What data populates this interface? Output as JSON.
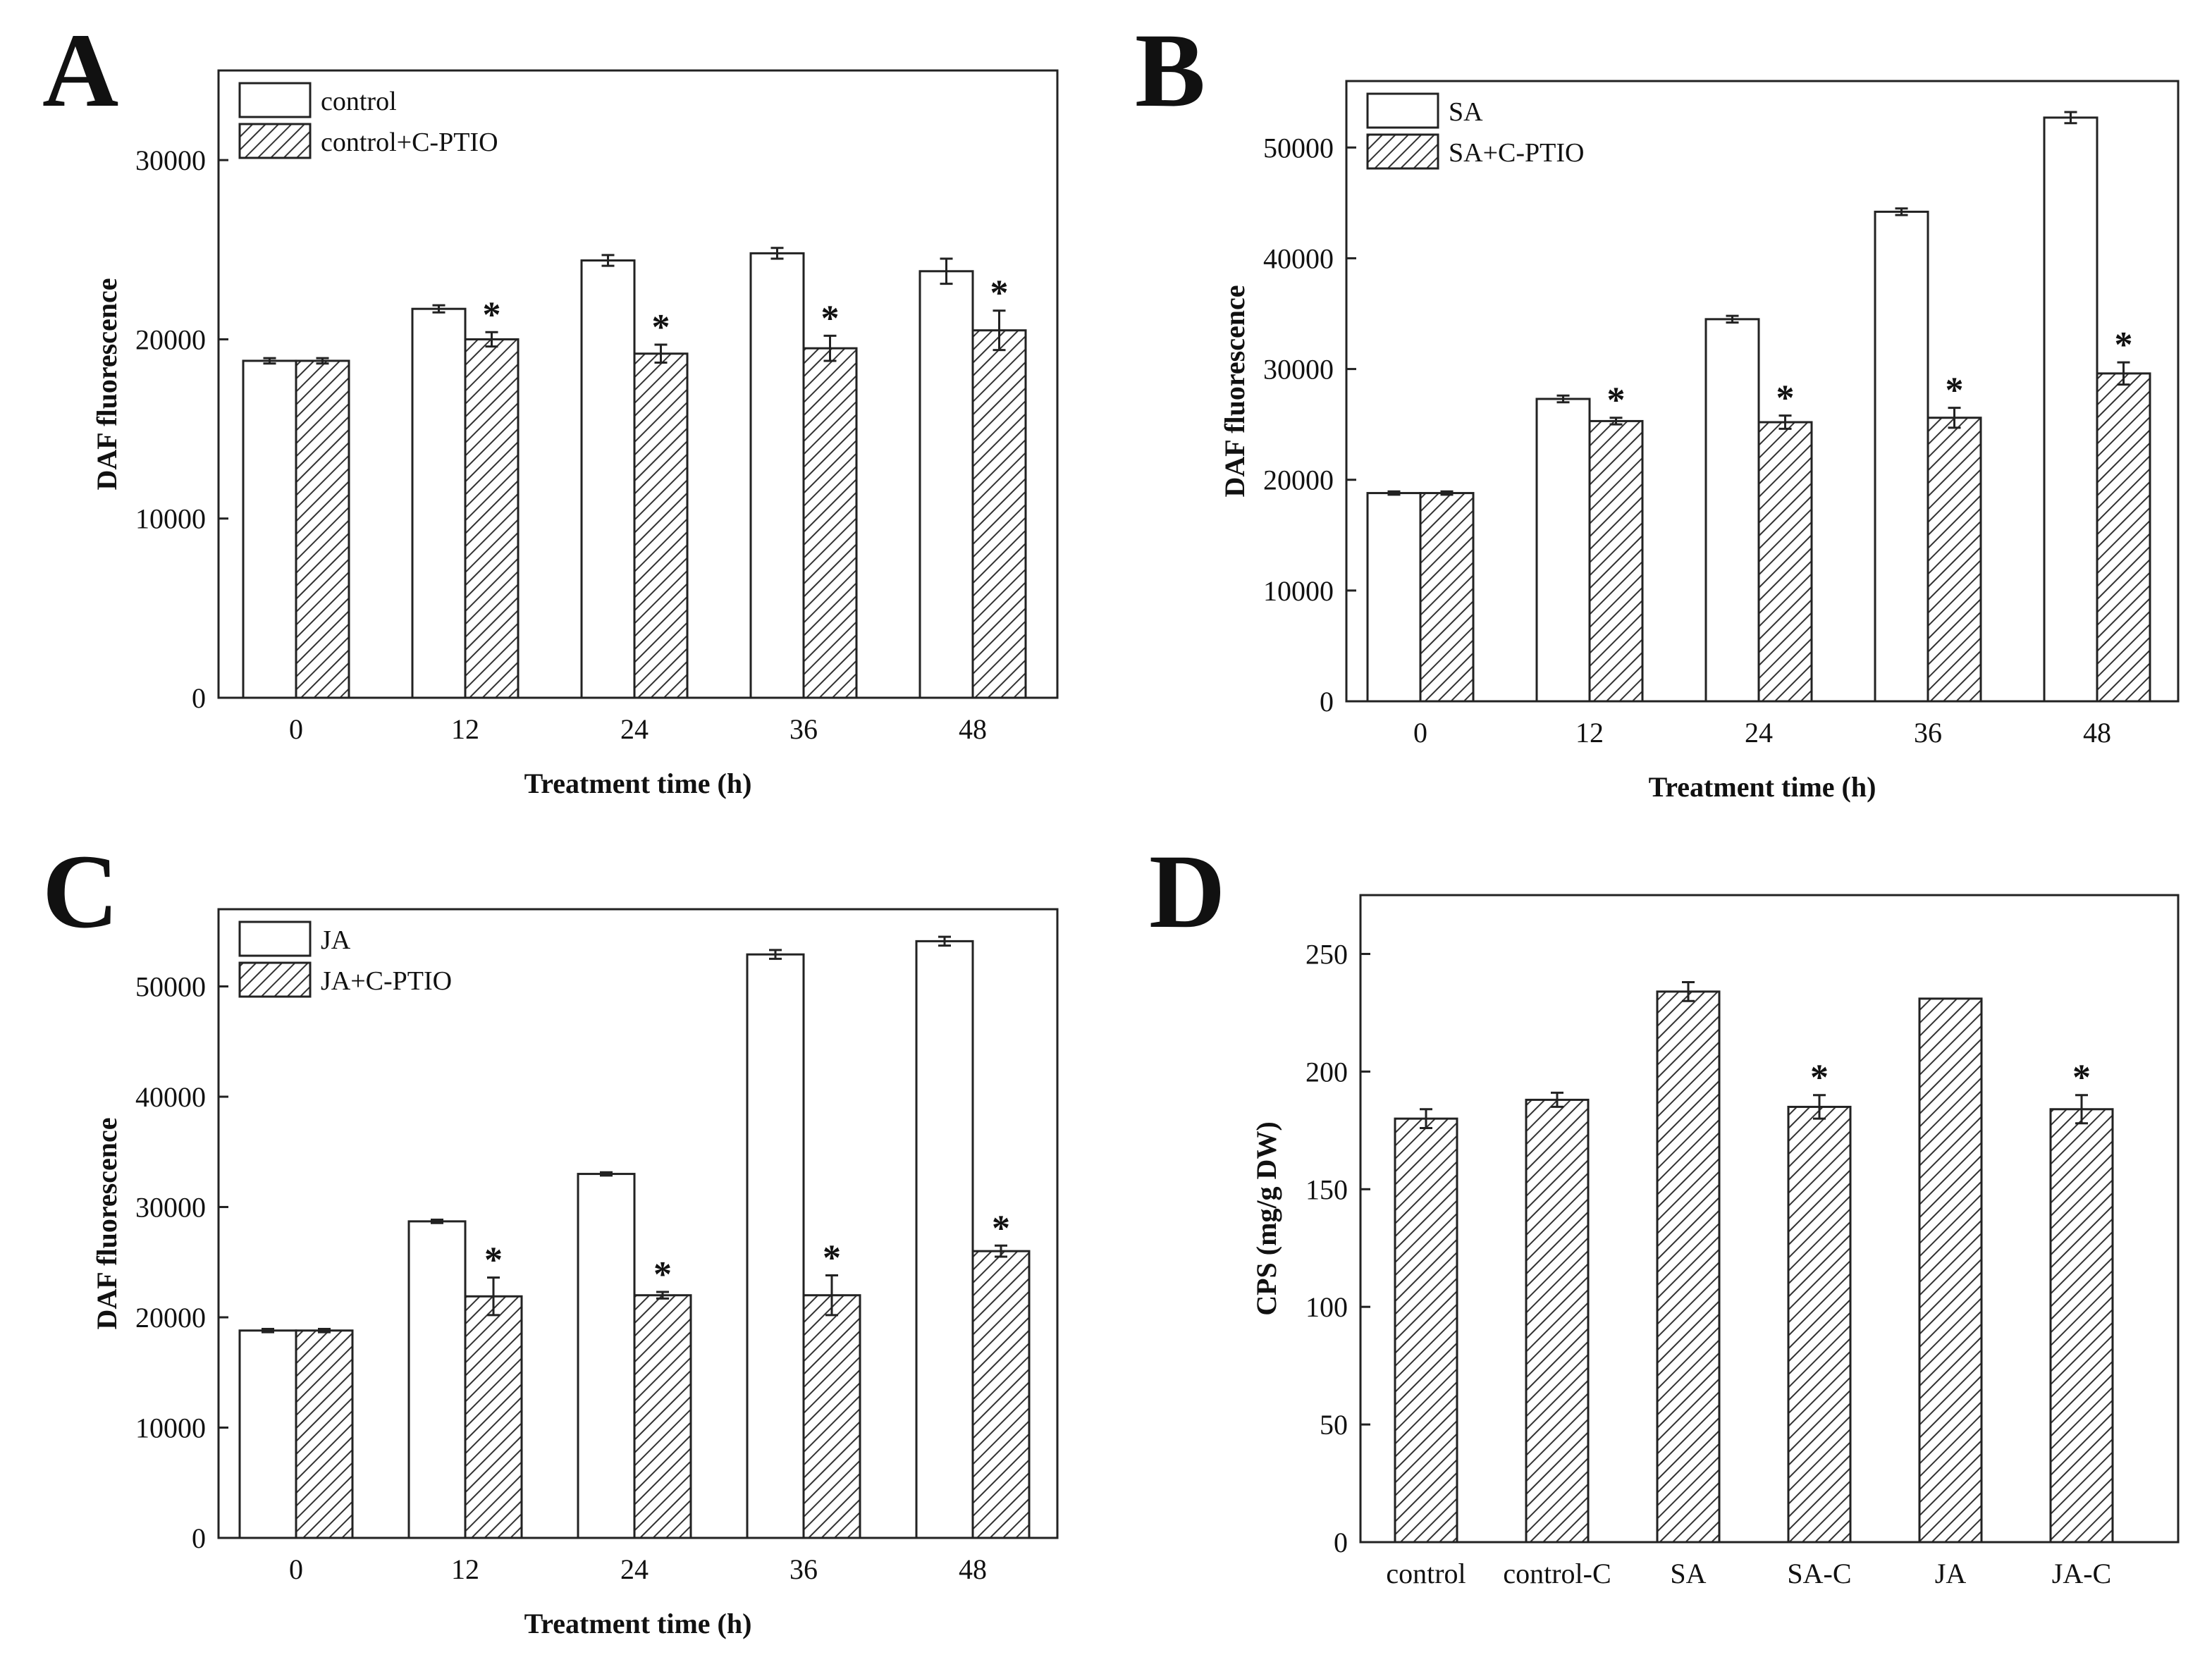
{
  "chart_data": [
    {
      "panel": "A",
      "type": "bar",
      "categories": [
        "0",
        "12",
        "24",
        "36",
        "48"
      ],
      "series": [
        {
          "name": "control",
          "pattern": "open",
          "values": [
            18800,
            21700,
            24400,
            24800,
            23800
          ],
          "errors": [
            150,
            200,
            300,
            300,
            700
          ]
        },
        {
          "name": "control+C-PTIO",
          "pattern": "hatched",
          "values": [
            18800,
            20000,
            19200,
            19500,
            20500
          ],
          "errors": [
            150,
            400,
            500,
            700,
            1100
          ]
        }
      ],
      "significant": [
        false,
        true,
        true,
        true,
        true
      ],
      "star_label": "*",
      "xlabel": "Treatment time (h)",
      "ylabel": "DAF fluorescence",
      "ylim": [
        0,
        35000
      ],
      "yticks": [
        0,
        10000,
        20000,
        30000
      ],
      "legend_position": "top-left"
    },
    {
      "panel": "B",
      "type": "bar",
      "categories": [
        "0",
        "12",
        "24",
        "36",
        "48"
      ],
      "series": [
        {
          "name": "SA",
          "pattern": "open",
          "values": [
            18800,
            27300,
            34500,
            44200,
            52700
          ],
          "errors": [
            150,
            300,
            300,
            300,
            500
          ]
        },
        {
          "name": "SA+C-PTIO",
          "pattern": "hatched",
          "values": [
            18800,
            25300,
            25200,
            25600,
            29600
          ],
          "errors": [
            150,
            300,
            600,
            900,
            1000
          ]
        }
      ],
      "significant": [
        false,
        true,
        true,
        true,
        true
      ],
      "star_label": "*",
      "xlabel": "Treatment time (h)",
      "ylabel": "DAF fluorescence",
      "ylim": [
        0,
        56000
      ],
      "yticks": [
        0,
        10000,
        20000,
        30000,
        40000,
        50000
      ],
      "legend_position": "top-left"
    },
    {
      "panel": "C",
      "type": "bar",
      "categories": [
        "0",
        "12",
        "24",
        "36",
        "48"
      ],
      "series": [
        {
          "name": "JA",
          "pattern": "open",
          "values": [
            18800,
            28700,
            33000,
            52900,
            54100
          ],
          "errors": [
            150,
            150,
            150,
            400,
            400
          ]
        },
        {
          "name": "JA+C-PTIO",
          "pattern": "hatched",
          "values": [
            18800,
            21900,
            22000,
            22000,
            26000
          ],
          "errors": [
            150,
            1700,
            300,
            1800,
            500
          ]
        }
      ],
      "significant": [
        false,
        true,
        true,
        true,
        true
      ],
      "star_label": "*",
      "xlabel": "Treatment time (h)",
      "ylabel": "DAF fluorescence",
      "ylim": [
        0,
        57000
      ],
      "yticks": [
        0,
        10000,
        20000,
        30000,
        40000,
        50000
      ],
      "legend_position": "top-left"
    },
    {
      "panel": "D",
      "type": "bar",
      "categories": [
        "control",
        "control-C",
        "SA",
        "SA-C",
        "JA",
        "JA-C"
      ],
      "series": [
        {
          "name": "CPS",
          "pattern": "hatched",
          "values": [
            180,
            188,
            234,
            185,
            231,
            184
          ],
          "errors": [
            4,
            3,
            4,
            5,
            0,
            6
          ]
        }
      ],
      "significant": [
        false,
        false,
        false,
        true,
        false,
        true
      ],
      "star_label": "*",
      "xlabel": "",
      "ylabel": "CPS (mg/g DW)",
      "ylim": [
        0,
        275
      ],
      "yticks": [
        0,
        50,
        100,
        150,
        200,
        250
      ],
      "legend_position": "none"
    }
  ]
}
